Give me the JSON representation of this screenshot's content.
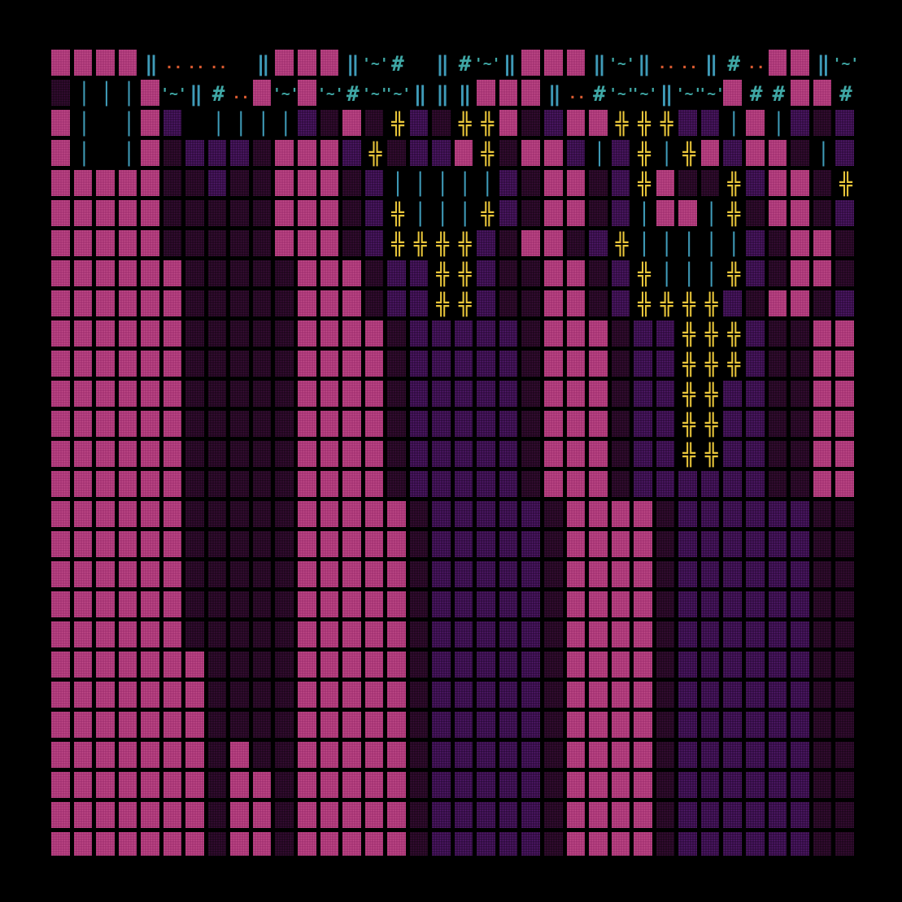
{
  "palette": {
    "background": "#000000",
    "rock": "#a0306f",
    "rock_texture": "#c04a88",
    "deep": "#2a0a38",
    "deep_texture": "#541a6e",
    "shadow": "#1a0618",
    "shadow_texture": "#3a0d38",
    "water": "#3f9bb8",
    "symbol": "#3fa7a5",
    "sparkle": "#d85a30",
    "fence": "#e8c53a"
  },
  "legend": {
    "R": {
      "kind": "block",
      "bg": "#a0306f",
      "dot": "#c04a88"
    },
    "P": {
      "kind": "block",
      "bg": "#2a0a38",
      "dot": "#541a6e"
    },
    "D": {
      "kind": "block",
      "bg": "#1a0618",
      "dot": "#3a0d38"
    },
    ".": {
      "kind": "empty"
    },
    "|": {
      "kind": "glyph",
      "char": "│",
      "color": "#3f9bb8"
    },
    "I": {
      "kind": "glyph",
      "char": "‖",
      "color": "#3f9bb8"
    },
    "#": {
      "kind": "glyph",
      "char": "#",
      "color": "#3fa7a5"
    },
    "~": {
      "kind": "glyph",
      "char": "'~'",
      "color": "#3fa7a5"
    },
    ":": {
      "kind": "glyph",
      "char": "..",
      "color": "#d85a30"
    },
    "+": {
      "kind": "glyph",
      "char": "╬",
      "color": "#e8c53a"
    },
    "s": {
      "kind": "glyph",
      "char": ":",
      "color": "#e8c53a"
    }
  },
  "map_rows": [
    "RRRRI:::.IRRRI~#.I#~IRRRI~I::I#:RRI~I~#",
    "D|||R~I#:R~R~#~~IIIRRRI:#~~I~~R##RR#~",
    "R|.|RP.||||PDRD+PD++RDPRR+++PP|R|PDPP++",
    "R|.|RDPPPDRRRP+DPPR+DRRP|P+|+RPRRD|P|",
    "RRRRRDDPDDRRRDP|||||PDRRDP+RDD+PRRD+RP",
    "RRRRRDDDDDRRRDP+|||+PDRRDP|RR|+DRRDP|D",
    "RRRRRDDDDDRRRDP++++PDRRDP+|||||PDRRDP+|",
    "RRRRRRDDDDDRRRDPP++PDDRRDP+|||+PDRRDP+|",
    "RRRRRRDDDDDRRRDPP++PDDRRDP++++PDRRDP+|",
    "RRRRRRDDDDDRRRRDPPPPPDRRRDPP+++PDDRRDP++",
    "RRRRRRDDDDDRRRRDPPPPPDRRRDPP+++PDDRRDPP+",
    "RRRRRRDDDDDRRRRDPPPPPDRRRDPP++PPDDRRDPP+s",
    "RRRRRRDDDDDRRRRDPPPPPDRRRDPP++PPDDRRDPP+s",
    "RRRRRRDDDDDRRRRDPPPPPDRRRDPP++PPDDRRDPP+s",
    "RRRRRRDDDDDRRRRDPPPPPDRRRDPPPPPPDDRRDPP+s",
    "RRRRRRDDDDDRRRRRDPPPPPDRRRRDPPPPPPDDRRDPP+s",
    "RRRRRRDDDDDRRRRRDPPPPPDRRRRDPPPPPPDDRRDPPPs",
    "RRRRRRDDDDDRRRRRDPPPPPDRRRRDPPPPPPDDRRDPPPs",
    "RRRRRRDDDDDRRRRRDPPPPPDRRRRDPPPPPPDDRRDPPPs",
    "RRRRRRDDDDDRRRRRDPPPPPDRRRRDPPPPPPDDRRDPPPs",
    "RRRRRRRDDDDRRRRRDPPPPPDRRRRDPPPPPPDDRRDPPP",
    "RRRRRRRDDDDRRRRRDPPPPPDRRRRDPPPPPPDDRRDPPP",
    "RRRRRRRDDDDRRRRRDPPPPPDRRRRDPPPPPPDDRRDPPP",
    "RRRRRRRDRDDRRRRRDPPPPPDRRRRDPPPPPPDDRRDPPP",
    "RRRRRRRDRRDRRRRRDPPPPPDRRRRDPPPPPPDDRRDPPP",
    "RRRRRRRDRRDRRRRRDPPPPPDRRRRDPPPPPPDDRRDPPP",
    "RRRRRRRDRRDRRRRRDPPPPPDRRRRDPPPPPPDDRRDPPP"
  ]
}
